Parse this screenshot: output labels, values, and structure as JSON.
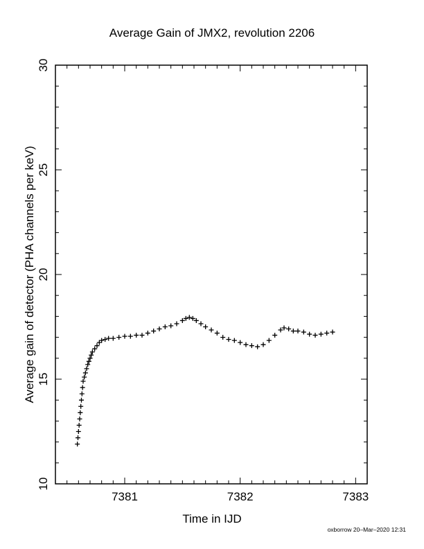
{
  "chart_data": {
    "type": "scatter",
    "title": "Average Gain of JMX2, revolution 2206",
    "xlabel": "Time in IJD",
    "ylabel": "Average gain of detector (PHA channels per keV)",
    "xlim": [
      7380.4,
      7383.1
    ],
    "ylim": [
      10,
      30
    ],
    "xticks": [
      7381,
      7382,
      7383
    ],
    "yticks": [
      10,
      15,
      20,
      25,
      30
    ],
    "xtick_labels": [
      "7381",
      "7382",
      "7383"
    ],
    "ytick_labels": [
      "10",
      "15",
      "20",
      "25",
      "30"
    ],
    "grid": false,
    "legend": "none",
    "marker": "+",
    "series": [
      {
        "points": [
          [
            7380.59,
            11.9
          ],
          [
            7380.595,
            12.2
          ],
          [
            7380.6,
            12.5
          ],
          [
            7380.605,
            12.8
          ],
          [
            7380.61,
            13.1
          ],
          [
            7380.615,
            13.4
          ],
          [
            7380.62,
            13.7
          ],
          [
            7380.625,
            14.0
          ],
          [
            7380.63,
            14.3
          ],
          [
            7380.635,
            14.6
          ],
          [
            7380.64,
            14.9
          ],
          [
            7380.65,
            15.1
          ],
          [
            7380.66,
            15.3
          ],
          [
            7380.67,
            15.5
          ],
          [
            7380.68,
            15.7
          ],
          [
            7380.69,
            15.85
          ],
          [
            7380.7,
            16.0
          ],
          [
            7380.71,
            16.15
          ],
          [
            7380.72,
            16.3
          ],
          [
            7380.74,
            16.45
          ],
          [
            7380.76,
            16.6
          ],
          [
            7380.78,
            16.75
          ],
          [
            7380.8,
            16.85
          ],
          [
            7380.83,
            16.9
          ],
          [
            7380.86,
            16.95
          ],
          [
            7380.9,
            16.95
          ],
          [
            7380.95,
            17.0
          ],
          [
            7381.0,
            17.05
          ],
          [
            7381.05,
            17.05
          ],
          [
            7381.1,
            17.1
          ],
          [
            7381.15,
            17.1
          ],
          [
            7381.2,
            17.2
          ],
          [
            7381.25,
            17.3
          ],
          [
            7381.3,
            17.4
          ],
          [
            7381.35,
            17.5
          ],
          [
            7381.4,
            17.55
          ],
          [
            7381.45,
            17.65
          ],
          [
            7381.5,
            17.8
          ],
          [
            7381.53,
            17.9
          ],
          [
            7381.56,
            17.95
          ],
          [
            7381.59,
            17.9
          ],
          [
            7381.62,
            17.8
          ],
          [
            7381.66,
            17.65
          ],
          [
            7381.7,
            17.5
          ],
          [
            7381.75,
            17.35
          ],
          [
            7381.8,
            17.2
          ],
          [
            7381.85,
            17.0
          ],
          [
            7381.9,
            16.9
          ],
          [
            7381.95,
            16.85
          ],
          [
            7382.0,
            16.75
          ],
          [
            7382.05,
            16.65
          ],
          [
            7382.1,
            16.6
          ],
          [
            7382.15,
            16.55
          ],
          [
            7382.2,
            16.65
          ],
          [
            7382.25,
            16.85
          ],
          [
            7382.3,
            17.1
          ],
          [
            7382.35,
            17.35
          ],
          [
            7382.38,
            17.45
          ],
          [
            7382.42,
            17.4
          ],
          [
            7382.46,
            17.3
          ],
          [
            7382.5,
            17.3
          ],
          [
            7382.55,
            17.25
          ],
          [
            7382.6,
            17.15
          ],
          [
            7382.65,
            17.1
          ],
          [
            7382.7,
            17.15
          ],
          [
            7382.75,
            17.2
          ],
          [
            7382.8,
            17.25
          ]
        ]
      }
    ]
  },
  "footer": {
    "stamp": "oxborrow 20–Mar–2020 12:31"
  }
}
